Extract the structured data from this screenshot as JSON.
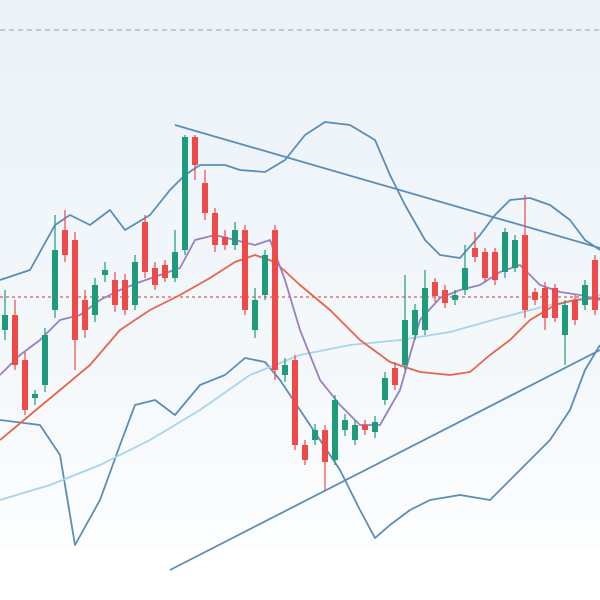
{
  "chart_data": {
    "type": "candlestick",
    "xlim": [
      0,
      60
    ],
    "ylim": [
      0,
      600
    ],
    "up_color": "#1f9a7a",
    "down_color": "#ee4a4a",
    "candles": {
      "open": [
        270,
        285,
        240,
        202,
        215,
        290,
        370,
        360,
        300,
        285,
        325,
        320,
        320,
        295,
        378,
        332,
        335,
        322,
        350,
        463,
        417,
        387,
        363,
        355,
        370,
        270,
        305,
        370,
        225,
        240,
        155,
        160,
        170,
        140,
        170,
        160,
        175,
        168,
        200,
        232,
        235,
        265,
        270,
        318,
        310,
        300,
        310,
        352,
        348,
        348,
        328,
        332,
        365,
        308,
        312,
        312,
        265,
        300,
        295,
        340
      ],
      "high": [
        310,
        300,
        248,
        210,
        272,
        385,
        390,
        368,
        310,
        322,
        338,
        328,
        326,
        345,
        385,
        338,
        340,
        370,
        465,
        465,
        430,
        392,
        370,
        378,
        375,
        312,
        350,
        375,
        242,
        245,
        160,
        176,
        175,
        205,
        186,
        180,
        180,
        184,
        228,
        238,
        325,
        296,
        330,
        322,
        315,
        310,
        355,
        368,
        352,
        352,
        372,
        365,
        405,
        312,
        318,
        316,
        300,
        305,
        320,
        345
      ],
      "low": [
        260,
        230,
        185,
        195,
        208,
        282,
        338,
        230,
        262,
        278,
        318,
        288,
        285,
        290,
        322,
        310,
        318,
        318,
        345,
        420,
        380,
        348,
        350,
        350,
        285,
        262,
        300,
        220,
        218,
        150,
        135,
        155,
        110,
        135,
        164,
        155,
        165,
        162,
        195,
        210,
        230,
        260,
        265,
        298,
        292,
        295,
        305,
        338,
        318,
        315,
        322,
        328,
        282,
        295,
        270,
        278,
        235,
        275,
        290,
        285
      ],
      "close": [
        285,
        235,
        190,
        206,
        265,
        350,
        345,
        260,
        270,
        315,
        330,
        295,
        290,
        338,
        328,
        315,
        322,
        348,
        463,
        435,
        387,
        355,
        355,
        370,
        290,
        300,
        345,
        230,
        235,
        155,
        140,
        170,
        138,
        200,
        180,
        175,
        170,
        178,
        222,
        215,
        280,
        290,
        312,
        304,
        297,
        305,
        332,
        343,
        322,
        320,
        368,
        360,
        290,
        300,
        282,
        282,
        295,
        280,
        315,
        290
      ]
    },
    "overlays": [
      {
        "color": "#5b8db8",
        "x": [
          0,
          3,
          5.5,
          7,
          9,
          11,
          12.5,
          15,
          17,
          18.5,
          20,
          22.5,
          24,
          26.5,
          28.5,
          30.5,
          32.5,
          35,
          37.5,
          39,
          40.5,
          42.5,
          44,
          46,
          48,
          49.5,
          51,
          53,
          55,
          57,
          58.5,
          60
        ],
        "values": [
          320,
          330,
          375,
          385,
          375,
          390,
          370,
          385,
          410,
          425,
          435,
          435,
          430,
          428,
          440,
          465,
          478,
          475,
          460,
          425,
          395,
          360,
          345,
          342,
          365,
          385,
          400,
          402,
          395,
          380,
          360,
          350
        ]
      },
      {
        "color": "#5b8db8",
        "x": [
          0,
          4,
          6,
          7.5,
          10,
          12,
          13.5,
          15.5,
          17.5,
          20,
          22.5,
          24.5,
          26.5,
          28,
          30,
          32,
          34,
          36,
          37.5,
          39,
          41,
          43,
          46,
          49,
          51,
          53,
          55,
          57,
          58.5,
          60
        ],
        "values": [
          180,
          175,
          145,
          55,
          100,
          155,
          195,
          200,
          185,
          215,
          225,
          242,
          238,
          220,
          190,
          160,
          130,
          90,
          62,
          75,
          90,
          100,
          105,
          100,
          120,
          140,
          160,
          190,
          230,
          255
        ]
      },
      {
        "color": "#a8d4ec",
        "x": [
          0,
          5,
          10,
          15,
          20,
          25,
          30,
          35,
          40,
          45,
          50,
          55,
          60
        ],
        "values": [
          100,
          115,
          135,
          160,
          190,
          225,
          245,
          255,
          260,
          268,
          282,
          295,
          305
        ]
      },
      {
        "color": "#e8644a",
        "x": [
          0,
          3,
          6,
          9,
          12,
          15,
          18,
          21,
          23.5,
          25.5,
          27.5,
          30,
          33,
          36,
          39,
          42,
          45,
          47,
          49,
          51,
          53,
          55.5,
          57.5,
          60
        ],
        "values": [
          160,
          185,
          210,
          235,
          270,
          290,
          305,
          322,
          338,
          345,
          338,
          315,
          290,
          260,
          238,
          228,
          225,
          228,
          245,
          260,
          280,
          295,
          300,
          302
        ]
      },
      {
        "color": "#9b7fc4",
        "x": [
          0,
          2,
          4,
          6,
          8,
          10,
          12,
          14,
          16,
          18,
          19.5,
          21.5,
          23.5,
          25.5,
          27,
          28.5,
          30,
          32,
          34,
          36,
          38,
          40,
          42,
          44,
          46,
          48,
          50,
          52,
          54,
          56,
          58,
          60
        ],
        "values": [
          225,
          245,
          260,
          280,
          285,
          300,
          310,
          318,
          325,
          332,
          360,
          365,
          360,
          355,
          360,
          320,
          270,
          220,
          195,
          175,
          175,
          210,
          280,
          302,
          310,
          315,
          328,
          335,
          315,
          308,
          305,
          300
        ]
      },
      {
        "color": "#5b8db8",
        "x": [
          17.5,
          60
        ],
        "values": [
          475,
          352
        ]
      },
      {
        "color": "#5b8db8",
        "x": [
          17,
          60
        ],
        "values": [
          30,
          250
        ]
      }
    ],
    "hlines": [
      {
        "value": 570,
        "color": "#a9b0b8",
        "dash": "5,4"
      },
      {
        "value": 303,
        "color": "#e05a5a",
        "dash": "3,3"
      }
    ]
  }
}
